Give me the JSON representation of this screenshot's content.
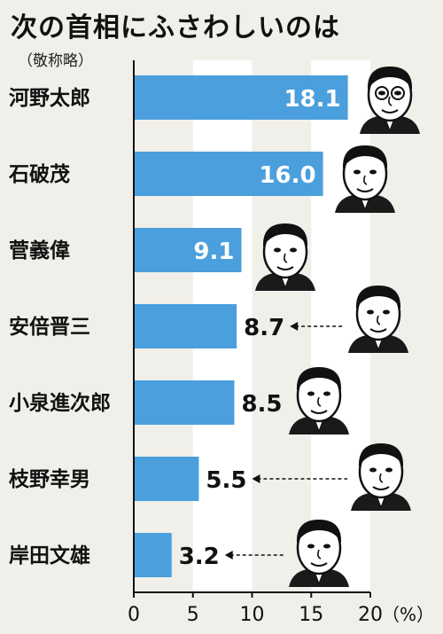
{
  "colors": {
    "bar": "#4a9fdc",
    "background": "#f0efe9",
    "band": "#ffffff",
    "axis": "#111111"
  },
  "portrait_icons": [
    "caricature-portrait-icon"
  ],
  "chart_data": {
    "type": "bar",
    "orientation": "horizontal",
    "title": "次の首相にふさわしいのは",
    "subtitle": "（敬称略）",
    "categories": [
      "河野太郎",
      "石破茂",
      "菅義偉",
      "安倍晋三",
      "小泉進次郎",
      "枝野幸男",
      "岸田文雄"
    ],
    "values": [
      18.1,
      16.0,
      9.1,
      8.7,
      8.5,
      5.5,
      3.2
    ],
    "value_labels": [
      "18.1",
      "16.0",
      "9.1",
      "8.7",
      "8.5",
      "5.5",
      "3.2"
    ],
    "label_inside": [
      true,
      true,
      true,
      false,
      false,
      false,
      false
    ],
    "arrow_to_label": [
      false,
      false,
      false,
      true,
      false,
      true,
      true
    ],
    "xlim": [
      0,
      20
    ],
    "xticks": [
      "0",
      "5",
      "10",
      "15",
      "20"
    ],
    "unit": "（%）",
    "grid": "alternating vertical bands"
  }
}
